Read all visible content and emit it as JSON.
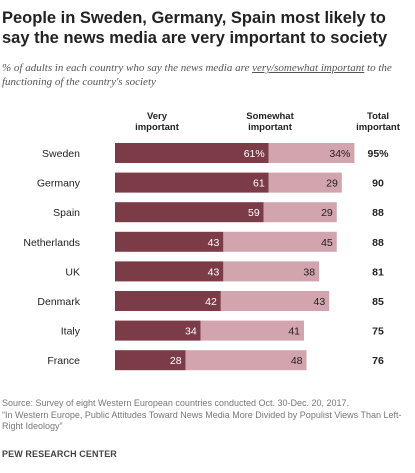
{
  "title": "People in Sweden, Germany, Spain most likely to say the news media are very important to society",
  "subtitle": {
    "before": "% of adults in each country who say the news media are ",
    "underlined": "very/somewhat important",
    "after": " to the functioning of the country's society"
  },
  "colors": {
    "very": "#7b3b47",
    "somewhat": "#d2a4ad",
    "text_light": "#ffffff",
    "text_dark": "#222222"
  },
  "chart_data": {
    "type": "bar",
    "orientation": "horizontal",
    "stacked": true,
    "categories": [
      "Sweden",
      "Germany",
      "Spain",
      "Netherlands",
      "UK",
      "Denmark",
      "Italy",
      "France"
    ],
    "series": [
      {
        "name": "Very important",
        "values": [
          61,
          61,
          59,
          43,
          43,
          42,
          34,
          28
        ],
        "labels": [
          "61%",
          "61",
          "59",
          "43",
          "43",
          "42",
          "34",
          "28"
        ]
      },
      {
        "name": "Somewhat important",
        "values": [
          34,
          29,
          29,
          45,
          38,
          43,
          41,
          48
        ],
        "labels": [
          "34%",
          "29",
          "29",
          "45",
          "38",
          "43",
          "41",
          "48"
        ]
      }
    ],
    "total_header": "Total important",
    "totals": [
      "95%",
      "90",
      "88",
      "88",
      "81",
      "85",
      "75",
      "76"
    ],
    "xlim": [
      0,
      100
    ]
  },
  "footer": {
    "source": "Source: Survey of eight Western European countries conducted Oct. 30-Dec. 20, 2017.",
    "report": "“In Western Europe, Public Attitudes Toward News Media More Divided by Populist Views Than Left-Right Ideology”",
    "brand": "PEW RESEARCH CENTER"
  }
}
